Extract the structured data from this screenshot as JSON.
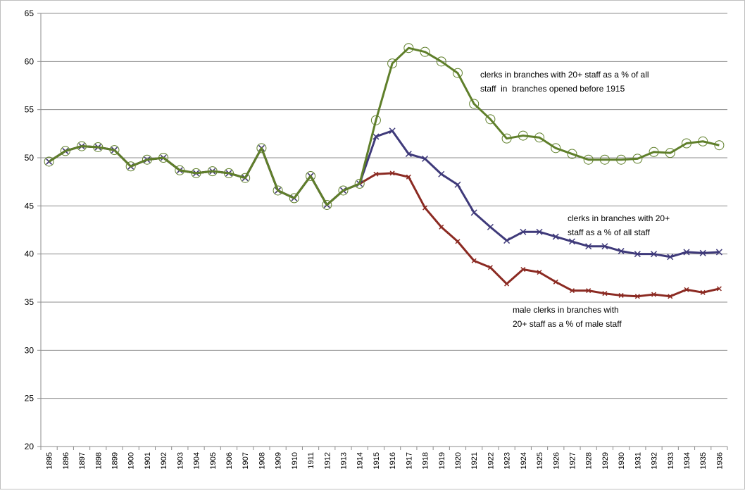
{
  "chart_data": {
    "type": "line",
    "categories": [
      "1895",
      "1896",
      "1897",
      "1898",
      "1899",
      "1900",
      "1901",
      "1902",
      "1903",
      "1904",
      "1905",
      "1906",
      "1907",
      "1908",
      "1909",
      "1910",
      "1911",
      "1912",
      "1913",
      "1914",
      "1915",
      "1916",
      "1917",
      "1918",
      "1919",
      "1920",
      "1921",
      "1922",
      "1923",
      "1924",
      "1925",
      "1926",
      "1927",
      "1928",
      "1929",
      "1930",
      "1931",
      "1932",
      "1933",
      "1934",
      "1935",
      "1936"
    ],
    "ylim": [
      20,
      65
    ],
    "yticks": [
      20,
      25,
      30,
      35,
      40,
      45,
      50,
      55,
      60,
      65
    ],
    "grid": true,
    "series": [
      {
        "name": "male clerks in branches with\n20+ staff as a % of male staff",
        "color": "#8b2a22",
        "marker": "x",
        "values": [
          49.6,
          50.7,
          51.2,
          51.1,
          50.8,
          49.1,
          49.8,
          50.0,
          48.7,
          48.4,
          48.6,
          48.4,
          47.9,
          51.0,
          46.6,
          45.8,
          48.1,
          45.1,
          46.6,
          47.3,
          48.3,
          48.4,
          48.0,
          44.8,
          42.8,
          41.3,
          39.3,
          38.6,
          36.9,
          38.4,
          38.1,
          37.1,
          36.2,
          36.2,
          35.9,
          35.7,
          35.6,
          35.8,
          35.6,
          36.3,
          36.0,
          36.4
        ]
      },
      {
        "name": "clerks in branches with 20+\nstaff as a % of all staff",
        "color": "#3f3a7a",
        "marker": "x",
        "values": [
          49.6,
          50.7,
          51.2,
          51.1,
          50.8,
          49.1,
          49.8,
          50.0,
          48.7,
          48.4,
          48.6,
          48.4,
          47.9,
          51.0,
          46.6,
          45.8,
          48.1,
          45.1,
          46.6,
          47.3,
          52.2,
          52.8,
          50.4,
          49.9,
          48.3,
          47.2,
          44.3,
          42.8,
          41.4,
          42.3,
          42.3,
          41.8,
          41.3,
          40.8,
          40.8,
          40.3,
          40.0,
          40.0,
          39.7,
          40.2,
          40.1,
          40.2
        ]
      },
      {
        "name": "clerks in branches with 20+ staff as a % of all\nstaff  in  branches opened before 1915",
        "color": "#5f7f2a",
        "marker": "circle",
        "values": [
          49.6,
          50.7,
          51.2,
          51.1,
          50.8,
          49.1,
          49.8,
          50.0,
          48.7,
          48.4,
          48.6,
          48.4,
          47.9,
          51.0,
          46.6,
          45.8,
          48.1,
          45.1,
          46.6,
          47.3,
          53.9,
          59.8,
          61.4,
          61.0,
          60.0,
          58.8,
          55.6,
          54.0,
          52.0,
          52.3,
          52.1,
          51.0,
          50.4,
          49.8,
          49.8,
          49.8,
          49.9,
          50.6,
          50.5,
          51.5,
          51.7,
          51.3
        ]
      }
    ]
  }
}
